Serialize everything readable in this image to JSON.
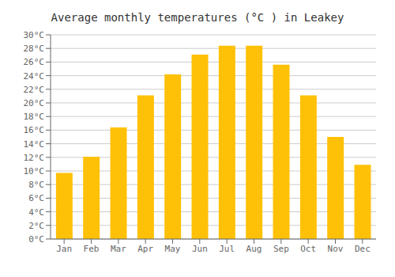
{
  "chart_data": {
    "type": "bar",
    "title": "Average monthly temperatures (°C ) in Leakey",
    "categories": [
      "Jan",
      "Feb",
      "Mar",
      "Apr",
      "May",
      "Jun",
      "Jul",
      "Aug",
      "Sep",
      "Oct",
      "Nov",
      "Dec"
    ],
    "values": [
      9.7,
      12.1,
      16.4,
      21.1,
      24.2,
      27.1,
      28.4,
      28.4,
      25.6,
      21.1,
      15.0,
      10.9
    ],
    "color": "#FFC107",
    "ylim": [
      0,
      30
    ],
    "yticks": [
      {
        "value": 0,
        "label": "0°C"
      },
      {
        "value": 2,
        "label": "2°C"
      },
      {
        "value": 4,
        "label": "4°C"
      },
      {
        "value": 6,
        "label": "6°C"
      },
      {
        "value": 8,
        "label": "8°C"
      },
      {
        "value": 10,
        "label": "10°C"
      },
      {
        "value": 12,
        "label": "12°C"
      },
      {
        "value": 14,
        "label": "14°C"
      },
      {
        "value": 16,
        "label": "16°C"
      },
      {
        "value": 18,
        "label": "18°C"
      },
      {
        "value": 20,
        "label": "20°C"
      },
      {
        "value": 22,
        "label": "22°C"
      },
      {
        "value": 24,
        "label": "24°C"
      },
      {
        "value": 26,
        "label": "26°C"
      },
      {
        "value": 28,
        "label": "28°C"
      },
      {
        "value": 30,
        "label": "30°C"
      }
    ],
    "grid": true
  }
}
